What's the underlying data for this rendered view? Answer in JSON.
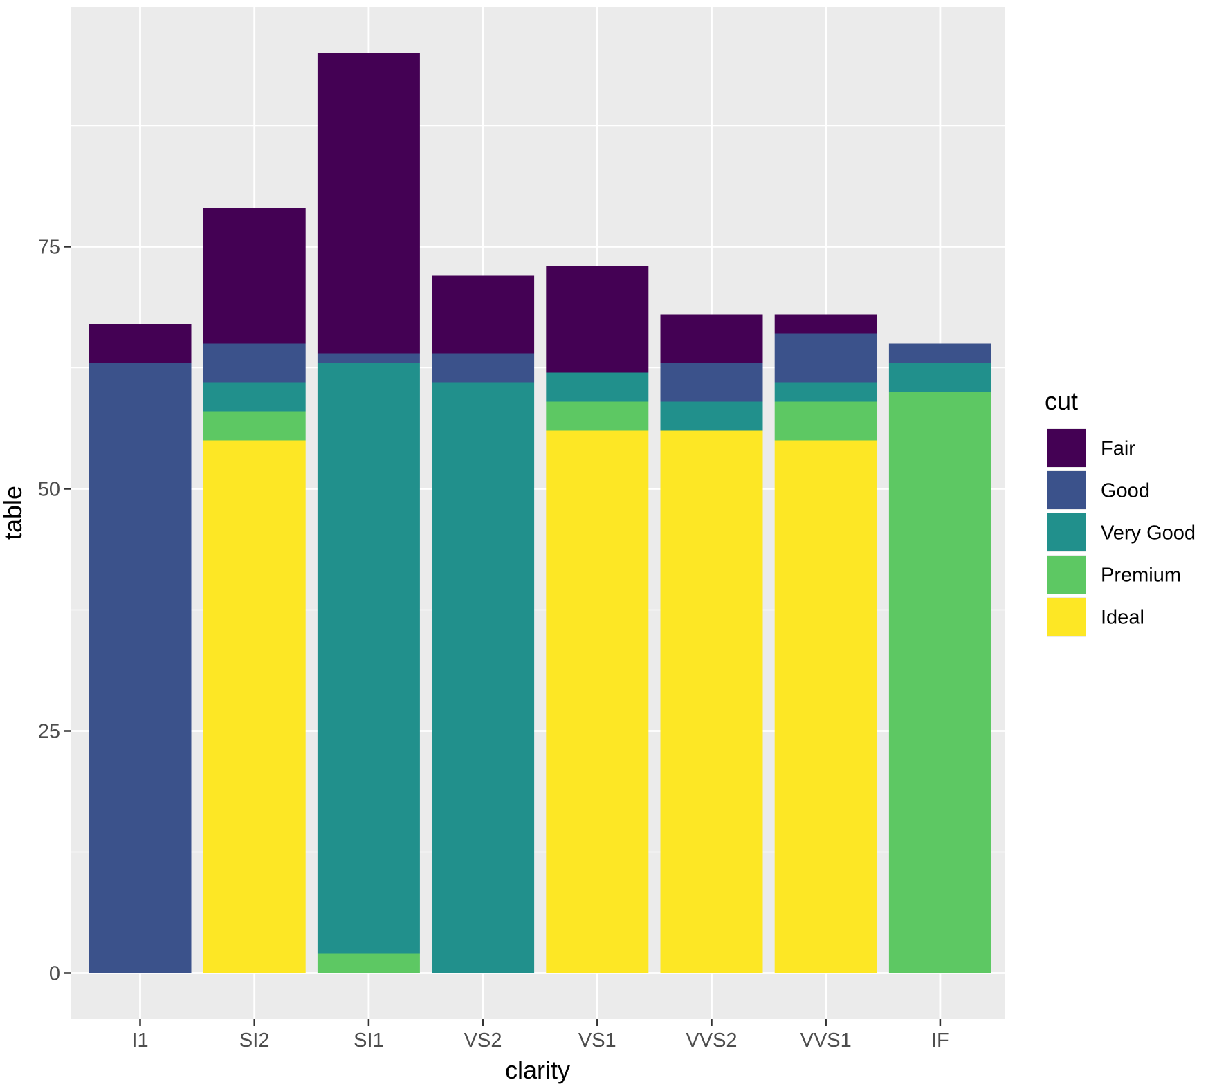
{
  "chart_data": {
    "type": "bar",
    "stacked": true,
    "xlabel": "clarity",
    "ylabel": "table",
    "categories": [
      "I1",
      "SI2",
      "SI1",
      "VS2",
      "VS1",
      "VVS2",
      "VVS1",
      "IF"
    ],
    "ylim": [
      -5,
      100
    ],
    "yticks": [
      0,
      25,
      50,
      75
    ],
    "grid": true,
    "legend": {
      "title": "cut",
      "position": "right",
      "entries": [
        {
          "name": "Fair",
          "color": "#440154"
        },
        {
          "name": "Good",
          "color": "#3B528B"
        },
        {
          "name": "Very Good",
          "color": "#21908C"
        },
        {
          "name": "Premium",
          "color": "#5DC863"
        },
        {
          "name": "Ideal",
          "color": "#FDE725"
        }
      ]
    },
    "stack_order_bottom_to_top": [
      "Ideal",
      "Premium",
      "Very Good",
      "Good",
      "Fair"
    ],
    "series": [
      {
        "name": "Ideal",
        "values": [
          0,
          55,
          0,
          0,
          56,
          56,
          55,
          0
        ]
      },
      {
        "name": "Premium",
        "values": [
          0,
          3,
          2,
          0,
          3,
          0,
          4,
          60
        ]
      },
      {
        "name": "Very Good",
        "values": [
          0,
          3,
          61,
          61,
          3,
          3,
          2,
          3
        ]
      },
      {
        "name": "Good",
        "values": [
          63,
          4,
          1,
          3,
          0,
          4,
          5,
          2
        ]
      },
      {
        "name": "Fair",
        "values": [
          4,
          14,
          31,
          8,
          11,
          5,
          2,
          0
        ]
      }
    ]
  }
}
